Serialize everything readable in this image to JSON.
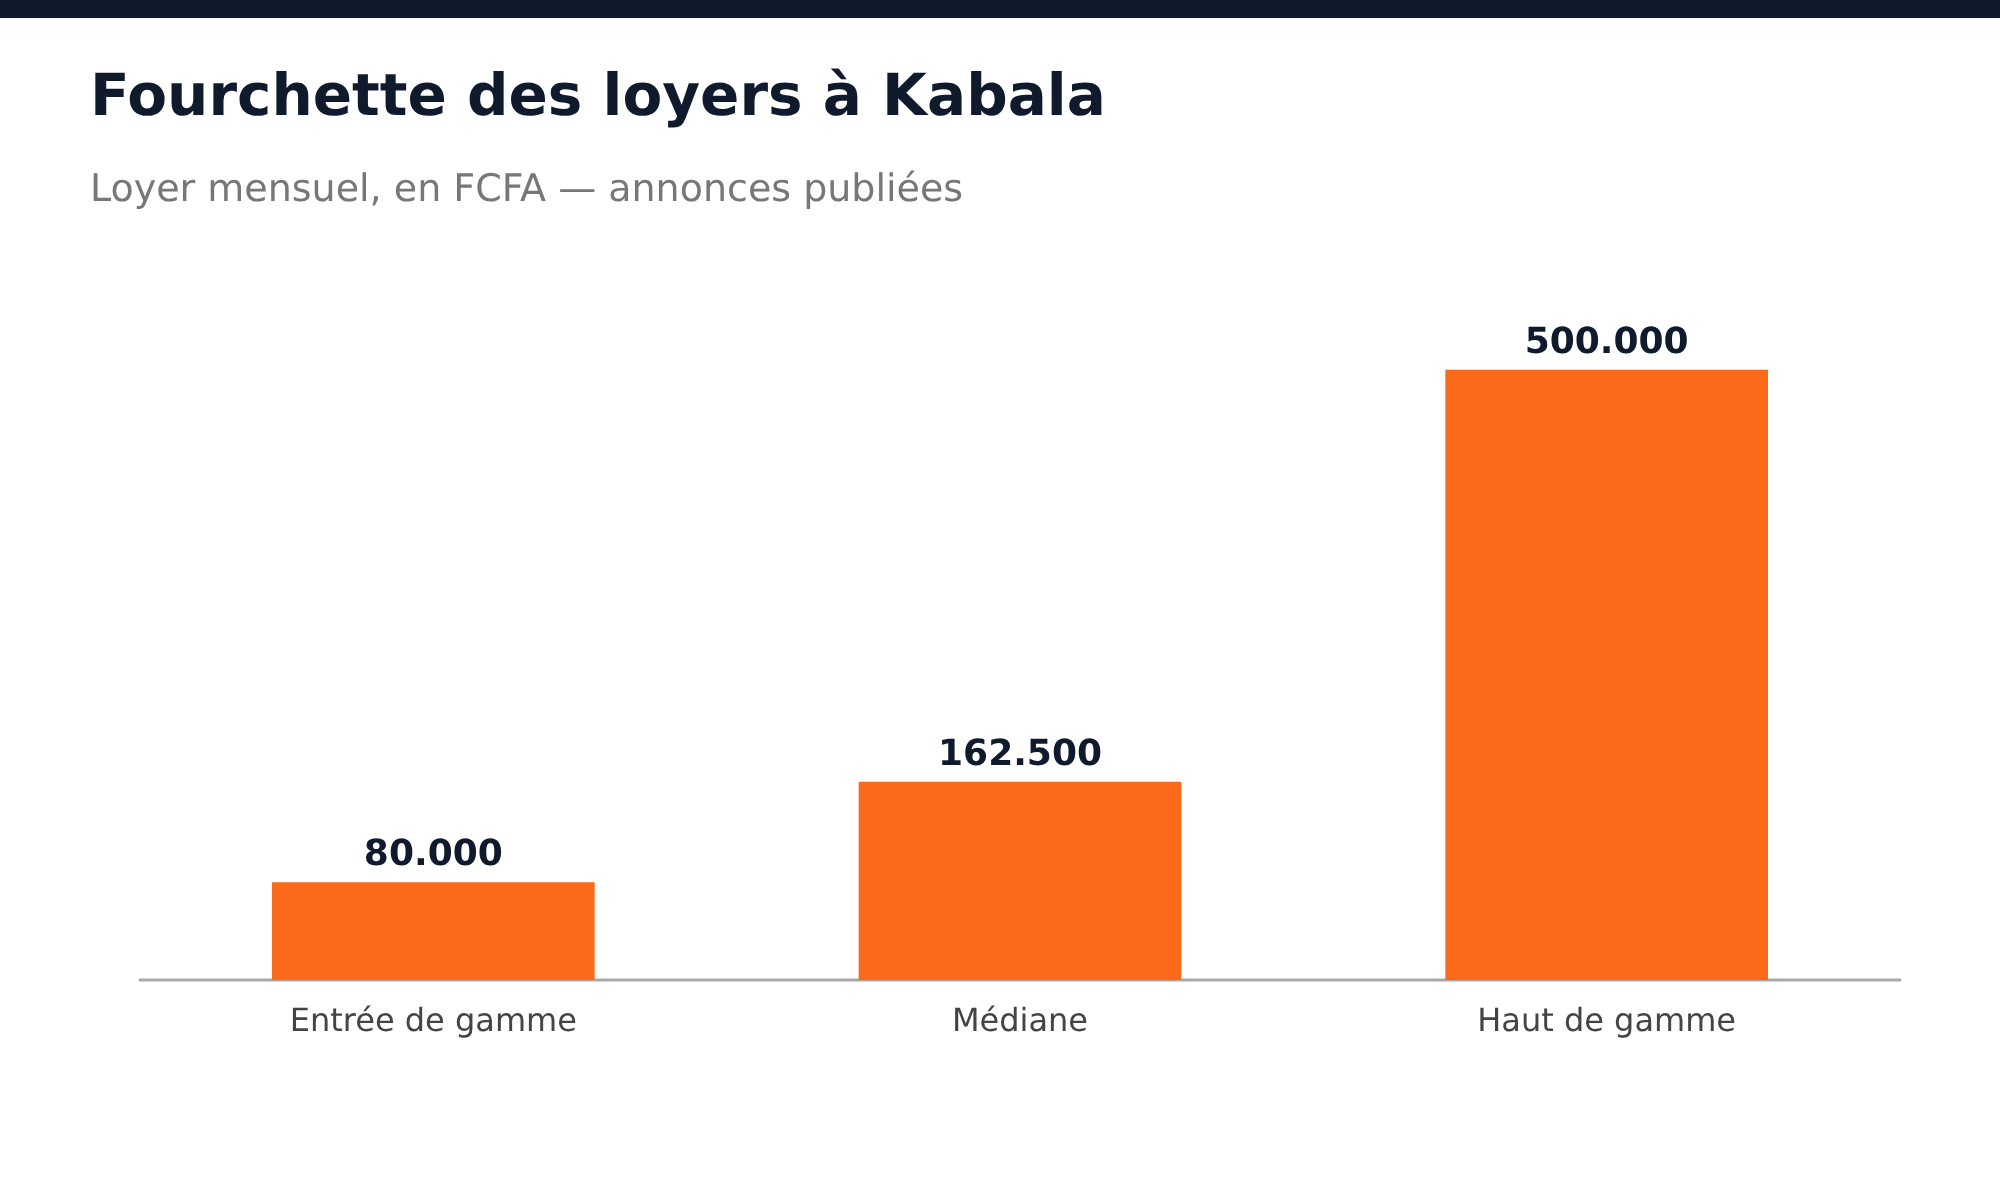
{
  "chart_data": {
    "type": "bar",
    "title": "Fourchette des loyers à Kabala",
    "subtitle": "Loyer mensuel, en FCFA — annonces publiées",
    "categories": [
      "Entrée de gamme",
      "Médiane",
      "Haut de gamme"
    ],
    "values": [
      80000,
      162500,
      500000
    ],
    "value_labels": [
      "80.000",
      "162.500",
      "500.000"
    ],
    "color": "#fb6a1a"
  }
}
